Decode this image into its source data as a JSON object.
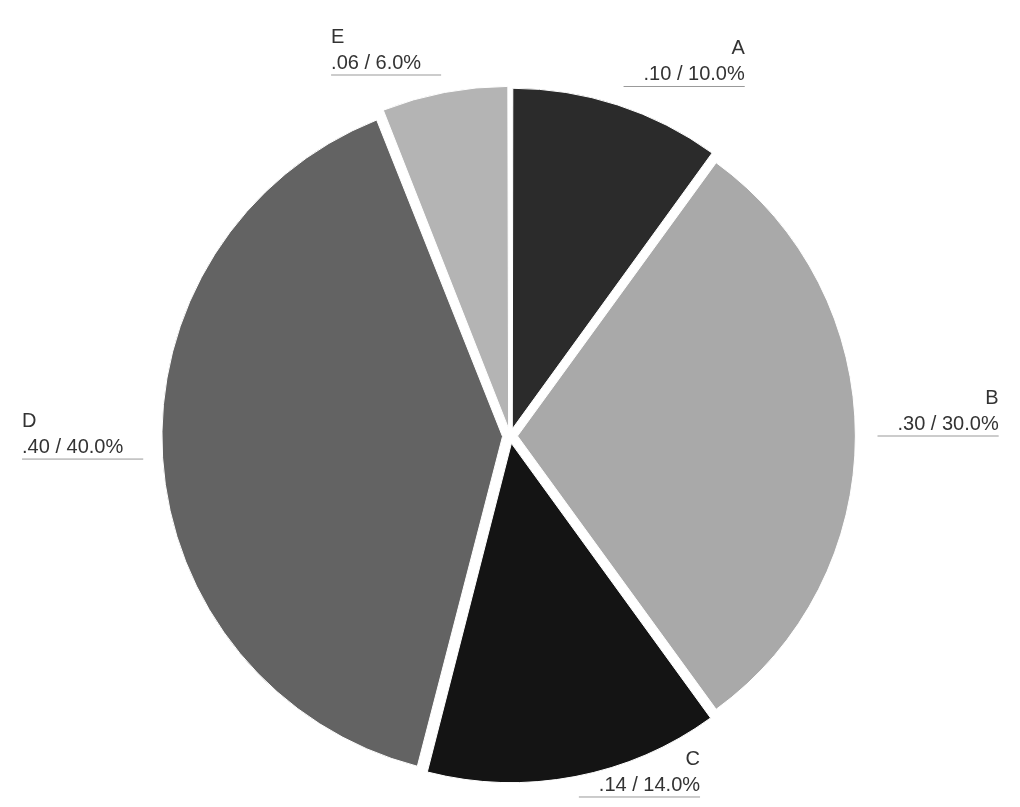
{
  "chart_data": {
    "type": "pie",
    "categories": [
      "A",
      "B",
      "C",
      "D",
      "E"
    ],
    "values": [
      10,
      30,
      14,
      40,
      6
    ],
    "value_labels": [
      ".10 / 10.0%",
      ".30 / 30.0%",
      ".14 / 14.0%",
      ".40 / 40.0%",
      ".06 / 6.0%"
    ],
    "colors": [
      "#2b2b2b",
      "#a9a9a9",
      "#141414",
      "#636363",
      "#b4b4b4"
    ],
    "legend": false
  }
}
